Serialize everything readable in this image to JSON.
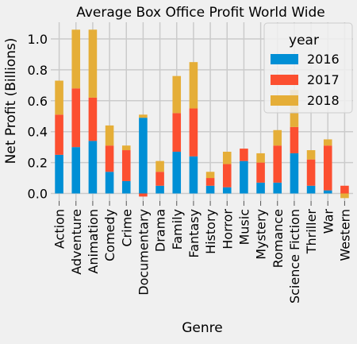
{
  "chart_data": {
    "type": "bar",
    "stacked": true,
    "title": "Average Box Office Profit World Wide",
    "xlabel": "Genre",
    "ylabel": "Net Profit (Billions)",
    "ylim": [
      -0.03,
      1.1
    ],
    "yticks": [
      0.0,
      0.2,
      0.4,
      0.6,
      0.8,
      1.0
    ],
    "ytick_labels": [
      "0.0",
      "0.2",
      "0.4",
      "0.6",
      "0.8",
      "1.0"
    ],
    "grid": true,
    "legend": {
      "title": "year",
      "placement": "top-right"
    },
    "categories": [
      "Action",
      "Adventure",
      "Animation",
      "Comedy",
      "Crime",
      "Documentary",
      "Drama",
      "Family",
      "Fantasy",
      "History",
      "Horror",
      "Music",
      "Mystery",
      "Romance",
      "Science Fiction",
      "Thriller",
      "War",
      "Western"
    ],
    "series": [
      {
        "name": "2016",
        "color": "#008fd5",
        "values": [
          0.25,
          0.3,
          0.34,
          0.14,
          0.08,
          0.49,
          0.05,
          0.27,
          0.24,
          0.05,
          0.04,
          0.21,
          0.07,
          0.07,
          0.26,
          0.05,
          0.02,
          0.0
        ]
      },
      {
        "name": "2017",
        "color": "#fc4f30",
        "values": [
          0.26,
          0.38,
          0.28,
          0.17,
          0.2,
          -0.02,
          0.09,
          0.25,
          0.31,
          0.05,
          0.15,
          0.08,
          0.13,
          0.24,
          0.17,
          0.17,
          0.29,
          0.05
        ]
      },
      {
        "name": "2018",
        "color": "#e5ae38",
        "values": [
          0.22,
          0.38,
          0.44,
          0.13,
          0.03,
          0.02,
          0.07,
          0.24,
          0.3,
          0.04,
          0.08,
          0.0,
          0.06,
          0.1,
          0.24,
          0.06,
          0.04,
          -0.03
        ]
      }
    ]
  }
}
